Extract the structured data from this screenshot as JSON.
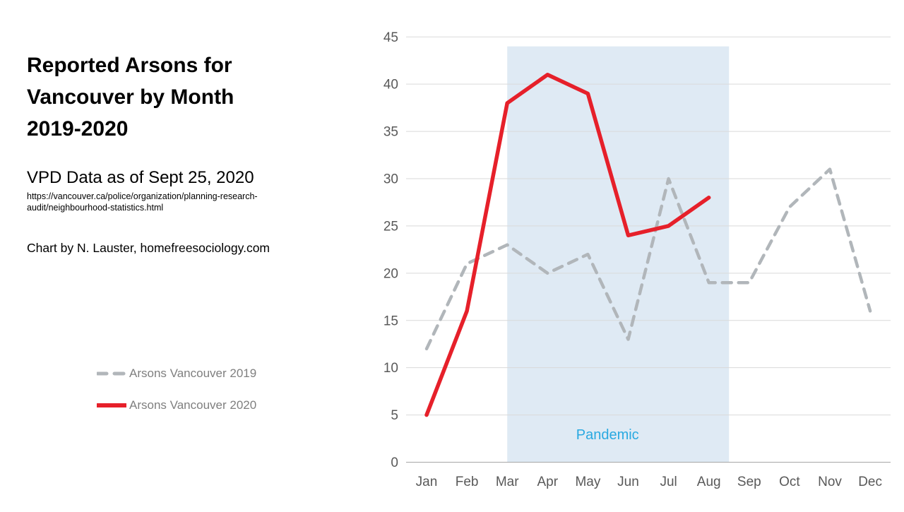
{
  "slide": {
    "title_lines": [
      "Reported Arsons for",
      "Vancouver by Month",
      "2019-2020"
    ],
    "subtitle": "VPD Data as of Sept 25, 2020",
    "source_lines": [
      "https://vancouver.ca/police/organization/planning-research-",
      "audit/neighbourhood-statistics.html"
    ],
    "credit": "Chart by N. Lauster, homefreesociology.com"
  },
  "chart_data": {
    "type": "line",
    "title": "Reported Arsons for Vancouver by Month 2019-2020",
    "categories": [
      "Jan",
      "Feb",
      "Mar",
      "Apr",
      "May",
      "Jun",
      "Jul",
      "Aug",
      "Sep",
      "Oct",
      "Nov",
      "Dec"
    ],
    "series": [
      {
        "name": "Arsons Vancouver 2019",
        "style": "dashed",
        "color": "#b1b6ba",
        "values": [
          12,
          21,
          23,
          20,
          22,
          13,
          30,
          19,
          19,
          27,
          31,
          16
        ]
      },
      {
        "name": "Arsons Vancouver 2020",
        "style": "solid",
        "color": "#e6202a",
        "values": [
          5,
          16,
          38,
          41,
          39,
          24,
          25,
          28
        ]
      }
    ],
    "ylim": [
      0,
      45
    ],
    "yticks": [
      0,
      5,
      10,
      15,
      20,
      25,
      30,
      35,
      40,
      45
    ],
    "grid": true,
    "grid_color": "#d9d9d9",
    "axis_line_color": "#a6a6a6",
    "tick_label_color": "#595959",
    "legend_position": "left-bottom",
    "band": {
      "label": "Pandemic",
      "start_index": 2,
      "end_index": 7.5,
      "y_top": 44,
      "fill": "#dfeaf4",
      "label_color": "#29a9e1"
    }
  }
}
